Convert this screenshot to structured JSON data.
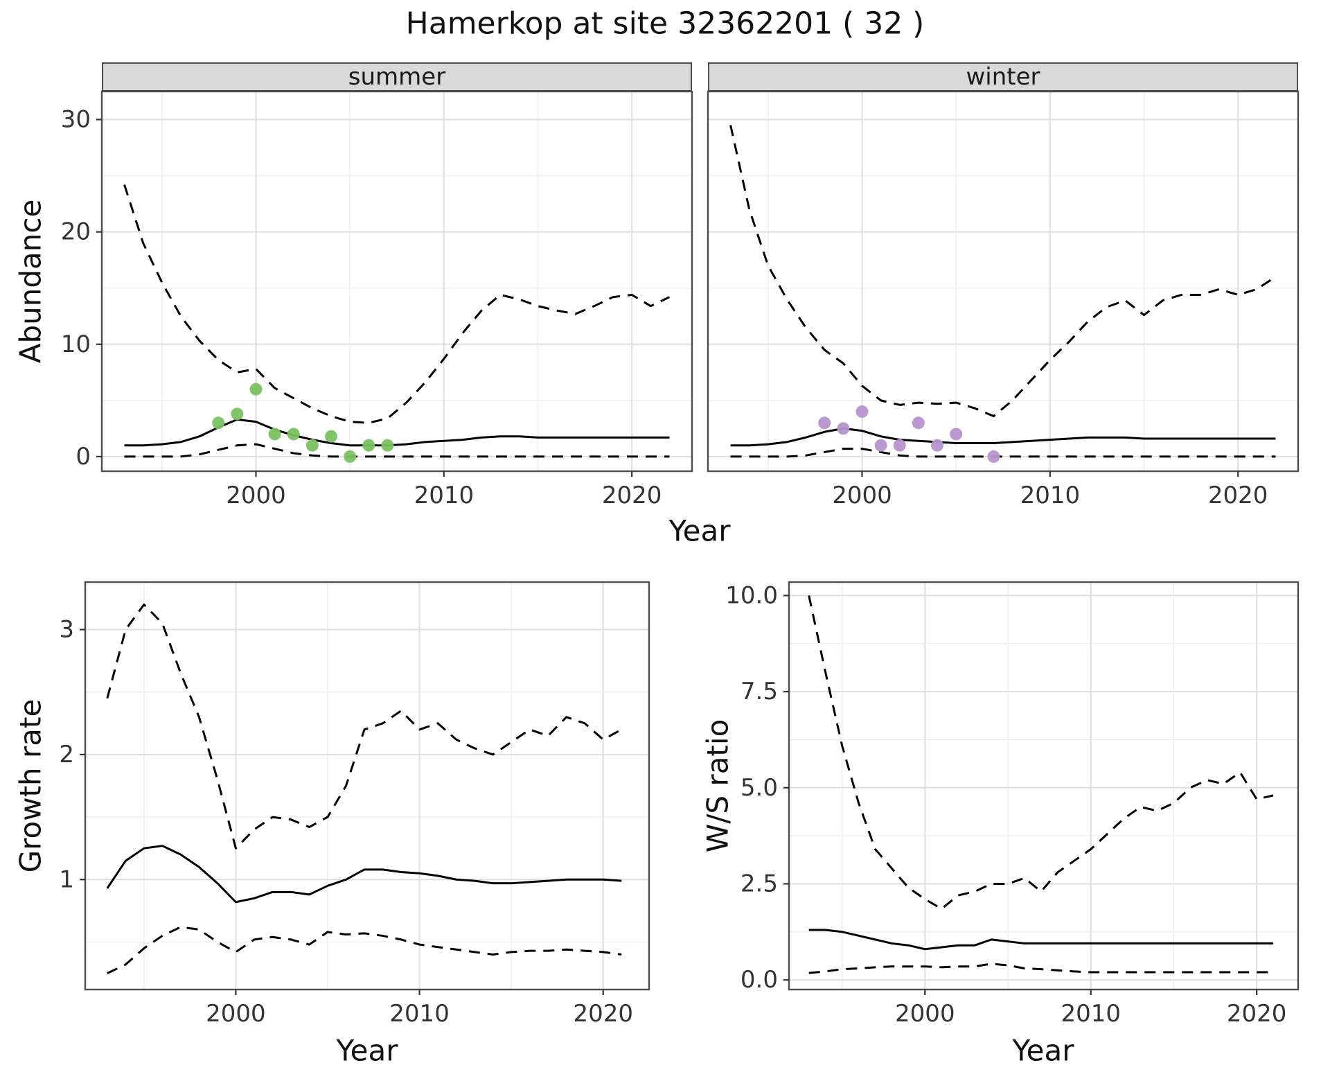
{
  "title": "Hamerkop at site 32362201 ( 32 )",
  "style": {
    "summer_point_color": "#7bc162",
    "winter_point_color": "#b694cc",
    "line_color": "#000000",
    "strip_bg": "#d9d9d9",
    "panel_border": "#4d4d4d",
    "grid_major": "#dedede",
    "grid_minor": "#efefef",
    "tick_color": "#333333",
    "tick_label_color": "#333333",
    "panel_bg": "#ffffff"
  },
  "chart_data": [
    {
      "type": "line",
      "facet_label": "summer",
      "xlabel": "Year",
      "ylabel": "Abundance",
      "xlim": [
        1991.8,
        2023.2
      ],
      "ylim": [
        -1.3,
        32.5
      ],
      "xticks": [
        2000,
        2010,
        2020
      ],
      "xtick_labels": [
        "2000",
        "2010",
        "2020"
      ],
      "yticks": [
        0,
        10,
        20,
        30
      ],
      "ytick_labels": [
        "0",
        "10",
        "20",
        "30"
      ],
      "x_minor": [
        1995,
        2005,
        2015
      ],
      "y_minor": [
        5,
        15,
        25
      ],
      "years": [
        1993,
        1994,
        1995,
        1996,
        1997,
        1998,
        1999,
        2000,
        2001,
        2002,
        2003,
        2004,
        2005,
        2006,
        2007,
        2008,
        2009,
        2010,
        2011,
        2012,
        2013,
        2014,
        2015,
        2016,
        2017,
        2018,
        2019,
        2020,
        2021,
        2022
      ],
      "series": [
        {
          "name": "upper_ci",
          "style": "dashed",
          "values": [
            24.2,
            19.0,
            15.5,
            12.5,
            10.3,
            8.6,
            7.5,
            7.8,
            6.1,
            5.2,
            4.3,
            3.6,
            3.1,
            3.0,
            3.4,
            4.8,
            6.6,
            8.7,
            11.0,
            13.0,
            14.4,
            14.0,
            13.4,
            13.0,
            12.7,
            13.4,
            14.2,
            14.4,
            13.4,
            14.2
          ]
        },
        {
          "name": "median",
          "style": "solid",
          "values": [
            1.0,
            1.0,
            1.1,
            1.3,
            1.8,
            2.6,
            3.3,
            3.1,
            2.4,
            1.9,
            1.5,
            1.2,
            1.0,
            1.0,
            1.0,
            1.1,
            1.3,
            1.4,
            1.5,
            1.7,
            1.8,
            1.8,
            1.7,
            1.7,
            1.7,
            1.7,
            1.7,
            1.7,
            1.7,
            1.7
          ]
        },
        {
          "name": "lower_ci",
          "style": "dashed",
          "values": [
            0,
            0,
            0,
            0,
            0.2,
            0.6,
            1.0,
            1.1,
            0.7,
            0.3,
            0.1,
            0,
            0,
            0,
            0,
            0,
            0,
            0,
            0,
            0,
            0,
            0,
            0,
            0,
            0,
            0,
            0,
            0,
            0,
            0
          ]
        }
      ],
      "points": {
        "name": "observed_abundance_summer",
        "color": "#7bc162",
        "x": [
          1998,
          1999,
          2000,
          2001,
          2002,
          2003,
          2004,
          2005,
          2006,
          2007
        ],
        "y": [
          3.0,
          3.8,
          6.0,
          2.0,
          2.0,
          1.0,
          1.8,
          0.0,
          1.0,
          1.0
        ]
      }
    },
    {
      "type": "line",
      "facet_label": "winter",
      "xlabel": "Year",
      "ylabel": "Abundance",
      "xlim": [
        1991.8,
        2023.2
      ],
      "ylim": [
        -1.3,
        32.5
      ],
      "xticks": [
        2000,
        2010,
        2020
      ],
      "xtick_labels": [
        "2000",
        "2010",
        "2020"
      ],
      "yticks": [
        0,
        10,
        20,
        30
      ],
      "ytick_labels": [
        "0",
        "10",
        "20",
        "30"
      ],
      "x_minor": [
        1995,
        2005,
        2015
      ],
      "y_minor": [
        5,
        15,
        25
      ],
      "years": [
        1993,
        1994,
        1995,
        1996,
        1997,
        1998,
        1999,
        2000,
        2001,
        2002,
        2003,
        2004,
        2005,
        2006,
        2007,
        2008,
        2009,
        2010,
        2011,
        2012,
        2013,
        2014,
        2015,
        2016,
        2017,
        2018,
        2019,
        2020,
        2021,
        2022
      ],
      "series": [
        {
          "name": "upper_ci",
          "style": "dashed",
          "values": [
            29.5,
            22.0,
            17.0,
            14.0,
            11.5,
            9.5,
            8.3,
            6.3,
            5.0,
            4.6,
            4.8,
            4.7,
            4.8,
            4.3,
            3.6,
            5.0,
            6.8,
            8.6,
            10.2,
            12.0,
            13.3,
            13.9,
            12.6,
            13.9,
            14.4,
            14.4,
            14.9,
            14.4,
            14.9,
            16.0
          ]
        },
        {
          "name": "median",
          "style": "solid",
          "values": [
            1.0,
            1.0,
            1.1,
            1.3,
            1.7,
            2.2,
            2.5,
            2.3,
            1.8,
            1.5,
            1.4,
            1.3,
            1.2,
            1.2,
            1.2,
            1.3,
            1.4,
            1.5,
            1.6,
            1.7,
            1.7,
            1.7,
            1.6,
            1.6,
            1.6,
            1.6,
            1.6,
            1.6,
            1.6,
            1.6
          ]
        },
        {
          "name": "lower_ci",
          "style": "dashed",
          "values": [
            0,
            0,
            0,
            0,
            0.1,
            0.4,
            0.7,
            0.7,
            0.4,
            0.1,
            0,
            0,
            0,
            0,
            0,
            0,
            0,
            0,
            0,
            0,
            0,
            0,
            0,
            0,
            0,
            0,
            0,
            0,
            0,
            0
          ]
        }
      ],
      "points": {
        "name": "observed_abundance_winter",
        "color": "#b694cc",
        "x": [
          1998,
          1999,
          2000,
          2001,
          2002,
          2003,
          2004,
          2005,
          2007
        ],
        "y": [
          3.0,
          2.5,
          4.0,
          1.0,
          1.0,
          3.0,
          1.0,
          2.0,
          0.0
        ]
      }
    },
    {
      "type": "line",
      "facet_label": "",
      "xlabel": "Year",
      "ylabel": "Growth rate",
      "xlim": [
        1991.8,
        2022.5
      ],
      "ylim": [
        0.12,
        3.38
      ],
      "xticks": [
        2000,
        2010,
        2020
      ],
      "xtick_labels": [
        "2000",
        "2010",
        "2020"
      ],
      "yticks": [
        1,
        2,
        3
      ],
      "ytick_labels": [
        "1",
        "2",
        "3"
      ],
      "x_minor": [
        1995,
        2005,
        2015
      ],
      "y_minor": [
        0.5,
        1.5,
        2.5
      ],
      "years": [
        1993,
        1994,
        1995,
        1996,
        1997,
        1998,
        1999,
        2000,
        2001,
        2002,
        2003,
        2004,
        2005,
        2006,
        2007,
        2008,
        2009,
        2010,
        2011,
        2012,
        2013,
        2014,
        2015,
        2016,
        2017,
        2018,
        2019,
        2020,
        2021
      ],
      "series": [
        {
          "name": "upper_ci",
          "style": "dashed",
          "values": [
            2.45,
            3.0,
            3.2,
            3.05,
            2.65,
            2.3,
            1.8,
            1.25,
            1.4,
            1.5,
            1.48,
            1.42,
            1.5,
            1.75,
            2.2,
            2.25,
            2.35,
            2.2,
            2.25,
            2.12,
            2.05,
            2.0,
            2.1,
            2.2,
            2.15,
            2.3,
            2.25,
            2.12,
            2.2
          ]
        },
        {
          "name": "median",
          "style": "solid",
          "values": [
            0.93,
            1.15,
            1.25,
            1.27,
            1.2,
            1.1,
            0.97,
            0.82,
            0.85,
            0.9,
            0.9,
            0.88,
            0.95,
            1.0,
            1.08,
            1.08,
            1.06,
            1.05,
            1.03,
            1.0,
            0.99,
            0.97,
            0.97,
            0.98,
            0.99,
            1.0,
            1.0,
            1.0,
            0.99
          ]
        },
        {
          "name": "lower_ci",
          "style": "dashed",
          "values": [
            0.25,
            0.32,
            0.45,
            0.55,
            0.62,
            0.6,
            0.5,
            0.42,
            0.52,
            0.54,
            0.52,
            0.48,
            0.58,
            0.56,
            0.57,
            0.55,
            0.52,
            0.48,
            0.46,
            0.44,
            0.42,
            0.4,
            0.42,
            0.43,
            0.43,
            0.44,
            0.43,
            0.42,
            0.4
          ]
        }
      ]
    },
    {
      "type": "line",
      "facet_label": "",
      "xlabel": "Year",
      "ylabel": "W/S ratio",
      "xlim": [
        1991.8,
        2022.5
      ],
      "ylim": [
        -0.25,
        10.35
      ],
      "xticks": [
        2000,
        2010,
        2020
      ],
      "xtick_labels": [
        "2000",
        "2010",
        "2020"
      ],
      "yticks": [
        0,
        2.5,
        5,
        7.5,
        10
      ],
      "ytick_labels": [
        "0.0",
        "2.5",
        "5.0",
        "7.5",
        "10.0"
      ],
      "x_minor": [
        1995,
        2005,
        2015
      ],
      "y_minor": [
        1.25,
        3.75,
        6.25,
        8.75
      ],
      "years": [
        1993,
        1994,
        1995,
        1996,
        1997,
        1998,
        1999,
        2000,
        2001,
        2002,
        2003,
        2004,
        2005,
        2006,
        2007,
        2008,
        2009,
        2010,
        2011,
        2012,
        2013,
        2014,
        2015,
        2016,
        2017,
        2018,
        2019,
        2020,
        2021
      ],
      "series": [
        {
          "name": "upper_ci",
          "style": "dashed",
          "values": [
            10.0,
            8.0,
            6.1,
            4.6,
            3.4,
            2.9,
            2.4,
            2.1,
            1.85,
            2.2,
            2.3,
            2.5,
            2.5,
            2.65,
            2.3,
            2.8,
            3.1,
            3.4,
            3.8,
            4.2,
            4.5,
            4.4,
            4.6,
            5.0,
            5.2,
            5.1,
            5.4,
            4.7,
            4.8
          ]
        },
        {
          "name": "median",
          "style": "solid",
          "values": [
            1.3,
            1.3,
            1.25,
            1.15,
            1.05,
            0.95,
            0.9,
            0.8,
            0.85,
            0.9,
            0.9,
            1.05,
            1.0,
            0.95,
            0.95,
            0.95,
            0.95,
            0.95,
            0.95,
            0.95,
            0.95,
            0.95,
            0.95,
            0.95,
            0.95,
            0.95,
            0.95,
            0.95,
            0.95
          ]
        },
        {
          "name": "lower_ci",
          "style": "dashed",
          "values": [
            0.18,
            0.22,
            0.28,
            0.3,
            0.33,
            0.35,
            0.35,
            0.35,
            0.33,
            0.35,
            0.35,
            0.42,
            0.38,
            0.3,
            0.28,
            0.25,
            0.22,
            0.2,
            0.2,
            0.2,
            0.2,
            0.2,
            0.2,
            0.2,
            0.2,
            0.2,
            0.2,
            0.2,
            0.2
          ]
        }
      ]
    }
  ]
}
